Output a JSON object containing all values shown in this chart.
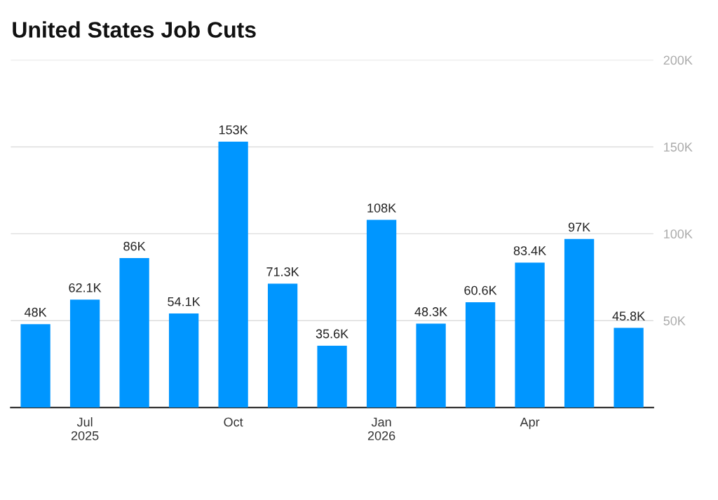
{
  "chart_data": {
    "type": "bar",
    "title": "United States Job Cuts",
    "categories": [
      null,
      "Jul\n2025",
      null,
      null,
      "Oct",
      null,
      null,
      "Jan\n2026",
      null,
      null,
      "Apr",
      null,
      null
    ],
    "values": [
      48000,
      62100,
      86000,
      54100,
      153000,
      71300,
      35600,
      108000,
      48300,
      60600,
      83400,
      97000,
      45800
    ],
    "value_labels": [
      "48K",
      "62.1K",
      "86K",
      "54.1K",
      "153K",
      "71.3K",
      "35.6K",
      "108K",
      "48.3K",
      "60.6K",
      "83.4K",
      "97K",
      "45.8K"
    ],
    "color": "#0096ff",
    "ylim": [
      0,
      200000
    ],
    "yticks": [
      {
        "value": 50000,
        "label": "50K"
      },
      {
        "value": 100000,
        "label": "100K"
      },
      {
        "value": 150000,
        "label": "150K"
      },
      {
        "value": 200000,
        "label": "200K"
      }
    ],
    "grid": "y",
    "legend": false
  }
}
